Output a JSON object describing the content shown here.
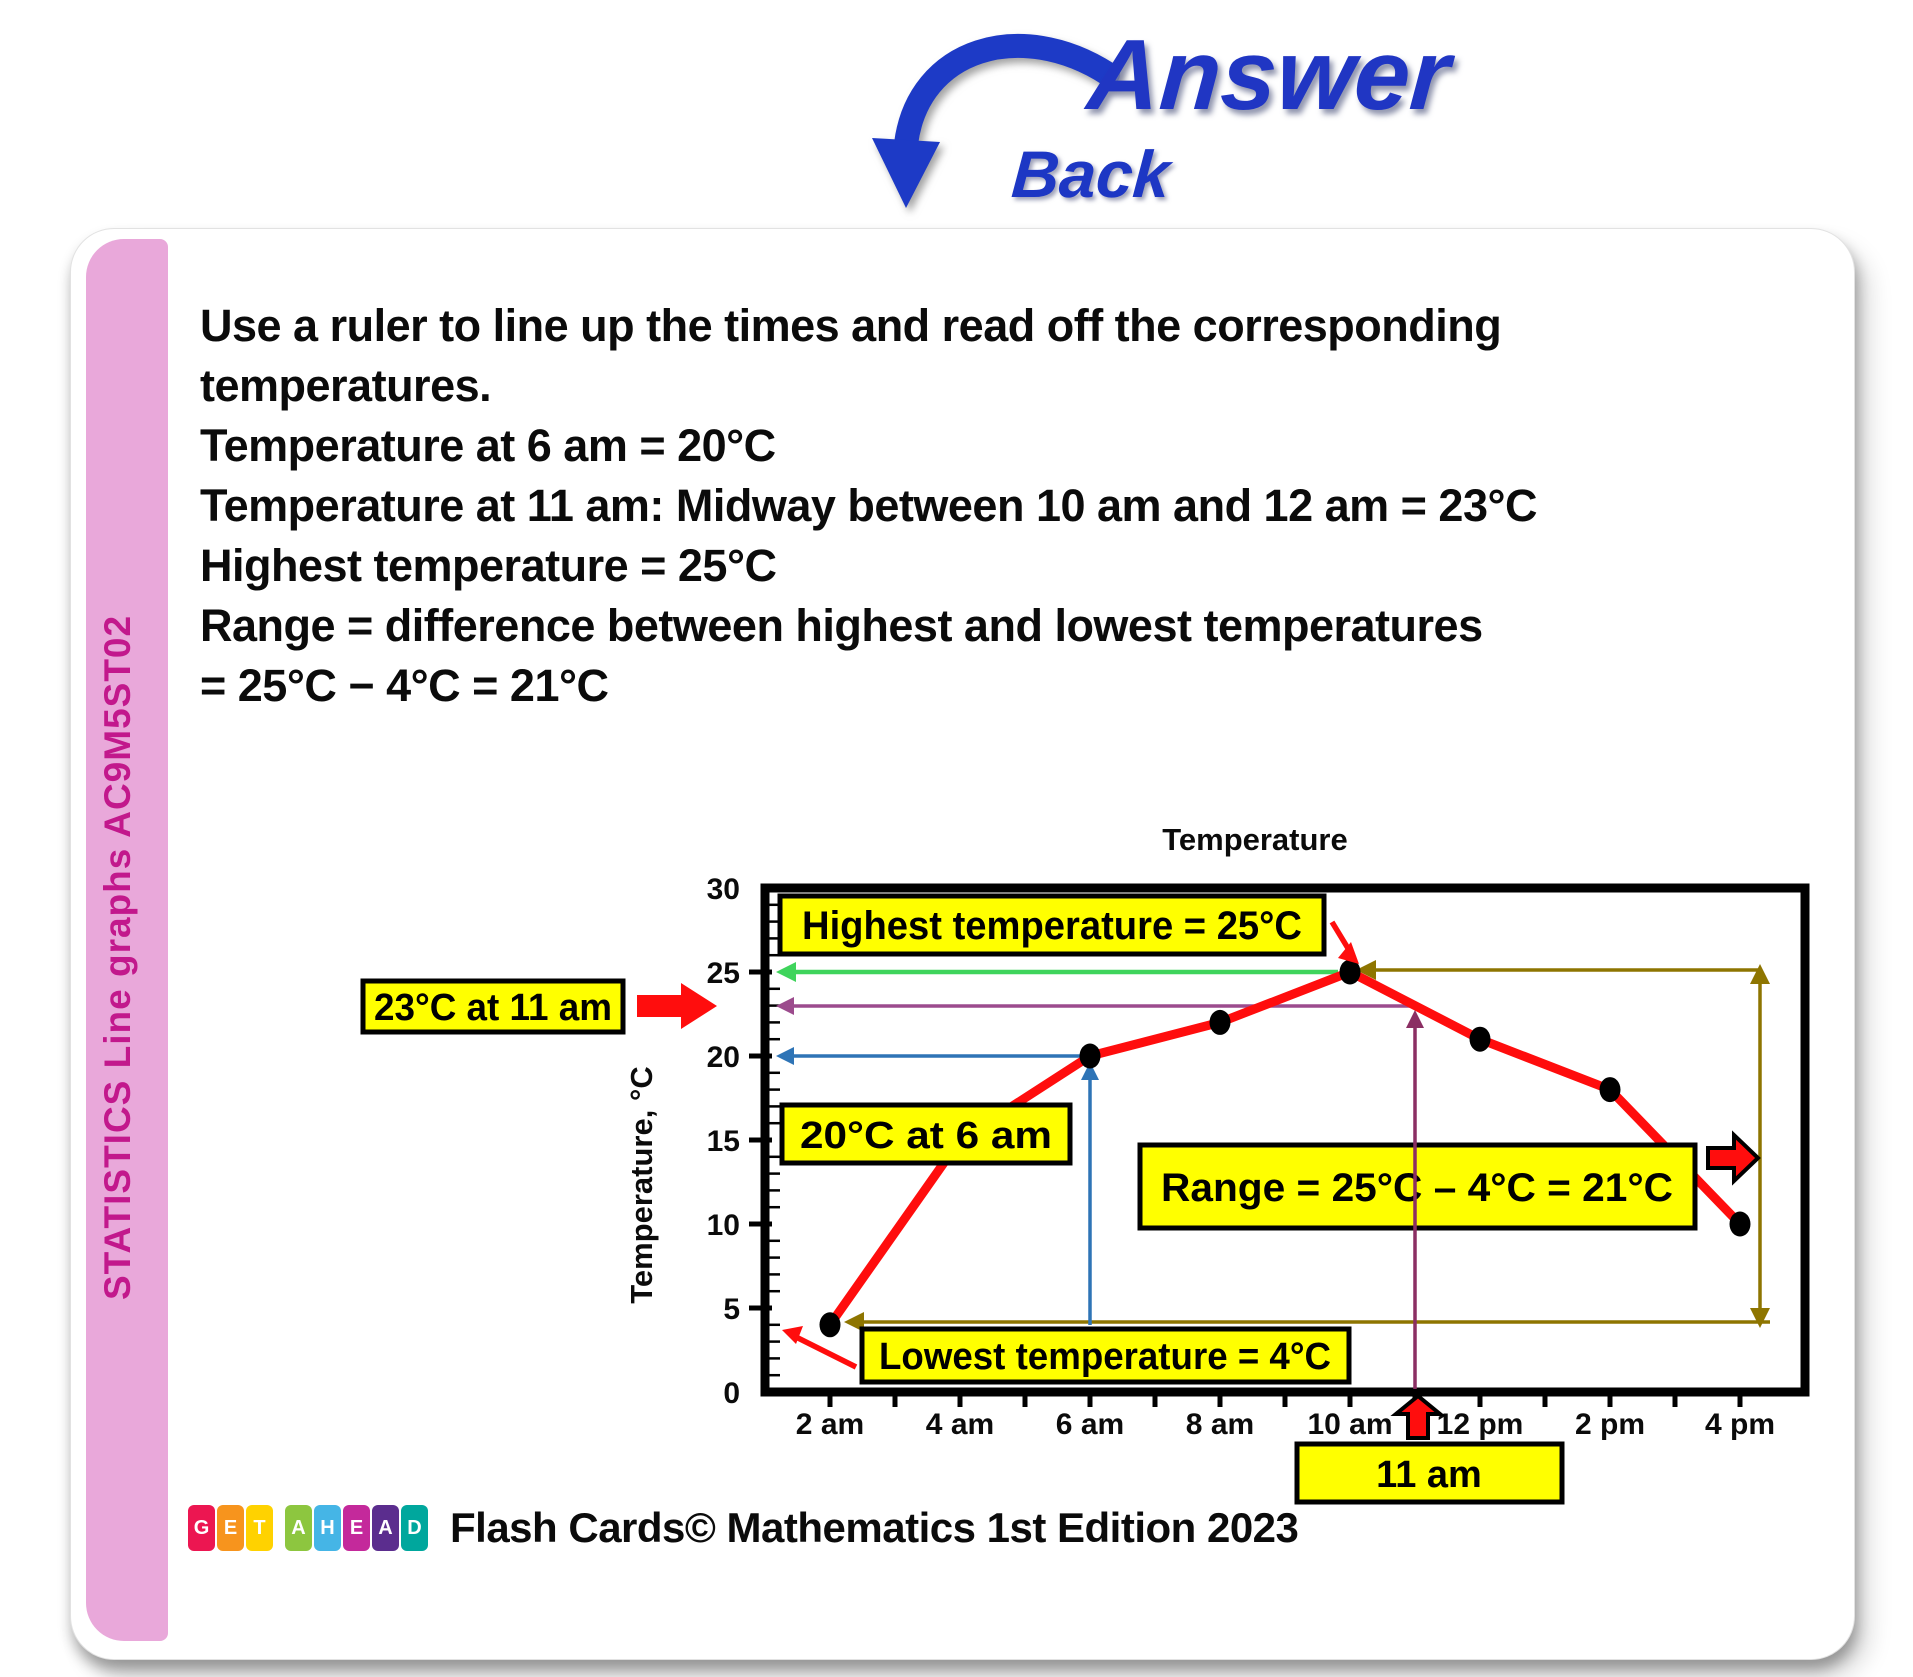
{
  "header": {
    "answer_label": "Answer",
    "back_label": "Back"
  },
  "sidebar": {
    "vertical_text": "STATISTICS Line graphs AC9M5ST02"
  },
  "card": {
    "answer_text_lines": [
      "Use a ruler to line up the times and read off the corresponding",
      "temperatures.",
      "Temperature at 6 am = 20°C",
      "Temperature at 11 am: Midway between 10 am and 12 am = 23°C",
      "Highest temperature = 25°C",
      "Range = difference between highest and lowest temperatures",
      "= 25°C − 4°C = 21°C"
    ]
  },
  "chart_data": {
    "type": "line",
    "title": "Temperature",
    "ylabel": "Temperature, °C",
    "x": [
      "2 am",
      "4 am",
      "6 am",
      "8 am",
      "10 am",
      "12 pm",
      "2 pm",
      "4 pm"
    ],
    "values": [
      4,
      15,
      20,
      22,
      25,
      21,
      18,
      10
    ],
    "ylim": [
      0,
      30
    ],
    "ytick_step": 5,
    "line_color": "#ff0d0d",
    "marker_color": "#000000",
    "annotations": {
      "highest": "Highest temperature = 25°C",
      "at11": "23°C at 11 am",
      "at6": "20°C at 6 am",
      "range": "Range = 25°C – 4°C = 21°C",
      "lowest": "Lowest temperature = 4°C",
      "eleven": "11 am"
    }
  },
  "footer": {
    "logo_letters": [
      {
        "ch": "G",
        "color": "#EC1651"
      },
      {
        "ch": "E",
        "color": "#F7941D"
      },
      {
        "ch": "T",
        "color": "#FFD200"
      },
      {
        "ch": "A",
        "color": "#8DC63F"
      },
      {
        "ch": "H",
        "color": "#45B5E6"
      },
      {
        "ch": "E",
        "color": "#C4299B"
      },
      {
        "ch": "A",
        "color": "#5B2D8E"
      },
      {
        "ch": "D",
        "color": "#00A79D"
      }
    ],
    "text": "Flash Cards© Mathematics 1st Edition 2023"
  },
  "colors": {
    "answer_blue": "#2036c3",
    "strip_pink": "#E9A8DA",
    "strip_text_magenta": "#C2188C",
    "callout_yellow": "#FFFF00",
    "line_red": "#ff0d0d",
    "arrow_green": "#3FD45C",
    "arrow_blue": "#2E74B6",
    "arrow_purple": "#9C4B8D",
    "arrow_dark_purple": "#8B2F63",
    "arrow_olive": "#8E7500"
  }
}
